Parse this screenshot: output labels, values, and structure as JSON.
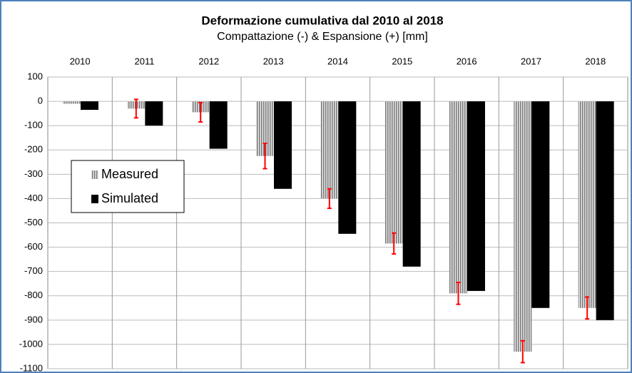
{
  "chart_data": {
    "type": "bar",
    "title": "Deformazione cumulativa dal 2010 al 2018",
    "subtitle": "Compattazione (-) & Espansione (+) [mm]",
    "categories": [
      "2010",
      "2011",
      "2012",
      "2013",
      "2014",
      "2015",
      "2016",
      "2017",
      "2018"
    ],
    "series": [
      {
        "name": "Measured",
        "color": "#9a9a9a",
        "values": [
          -10,
          -30,
          -45,
          -225,
          -400,
          -585,
          -790,
          -1030,
          -850
        ],
        "errors": [
          null,
          38,
          40,
          52,
          40,
          43,
          45,
          45,
          45
        ],
        "error_color": "#ff0000"
      },
      {
        "name": "Simulated",
        "color": "#000000",
        "values": [
          -35,
          -100,
          -195,
          -360,
          -545,
          -680,
          -780,
          -850,
          -900
        ]
      }
    ],
    "ylim": [
      -1100,
      100
    ],
    "yticks": [
      100,
      0,
      -100,
      -200,
      -300,
      -400,
      -500,
      -600,
      -700,
      -800,
      -900,
      -1000,
      -1100
    ],
    "grid": true,
    "legend": "left"
  }
}
